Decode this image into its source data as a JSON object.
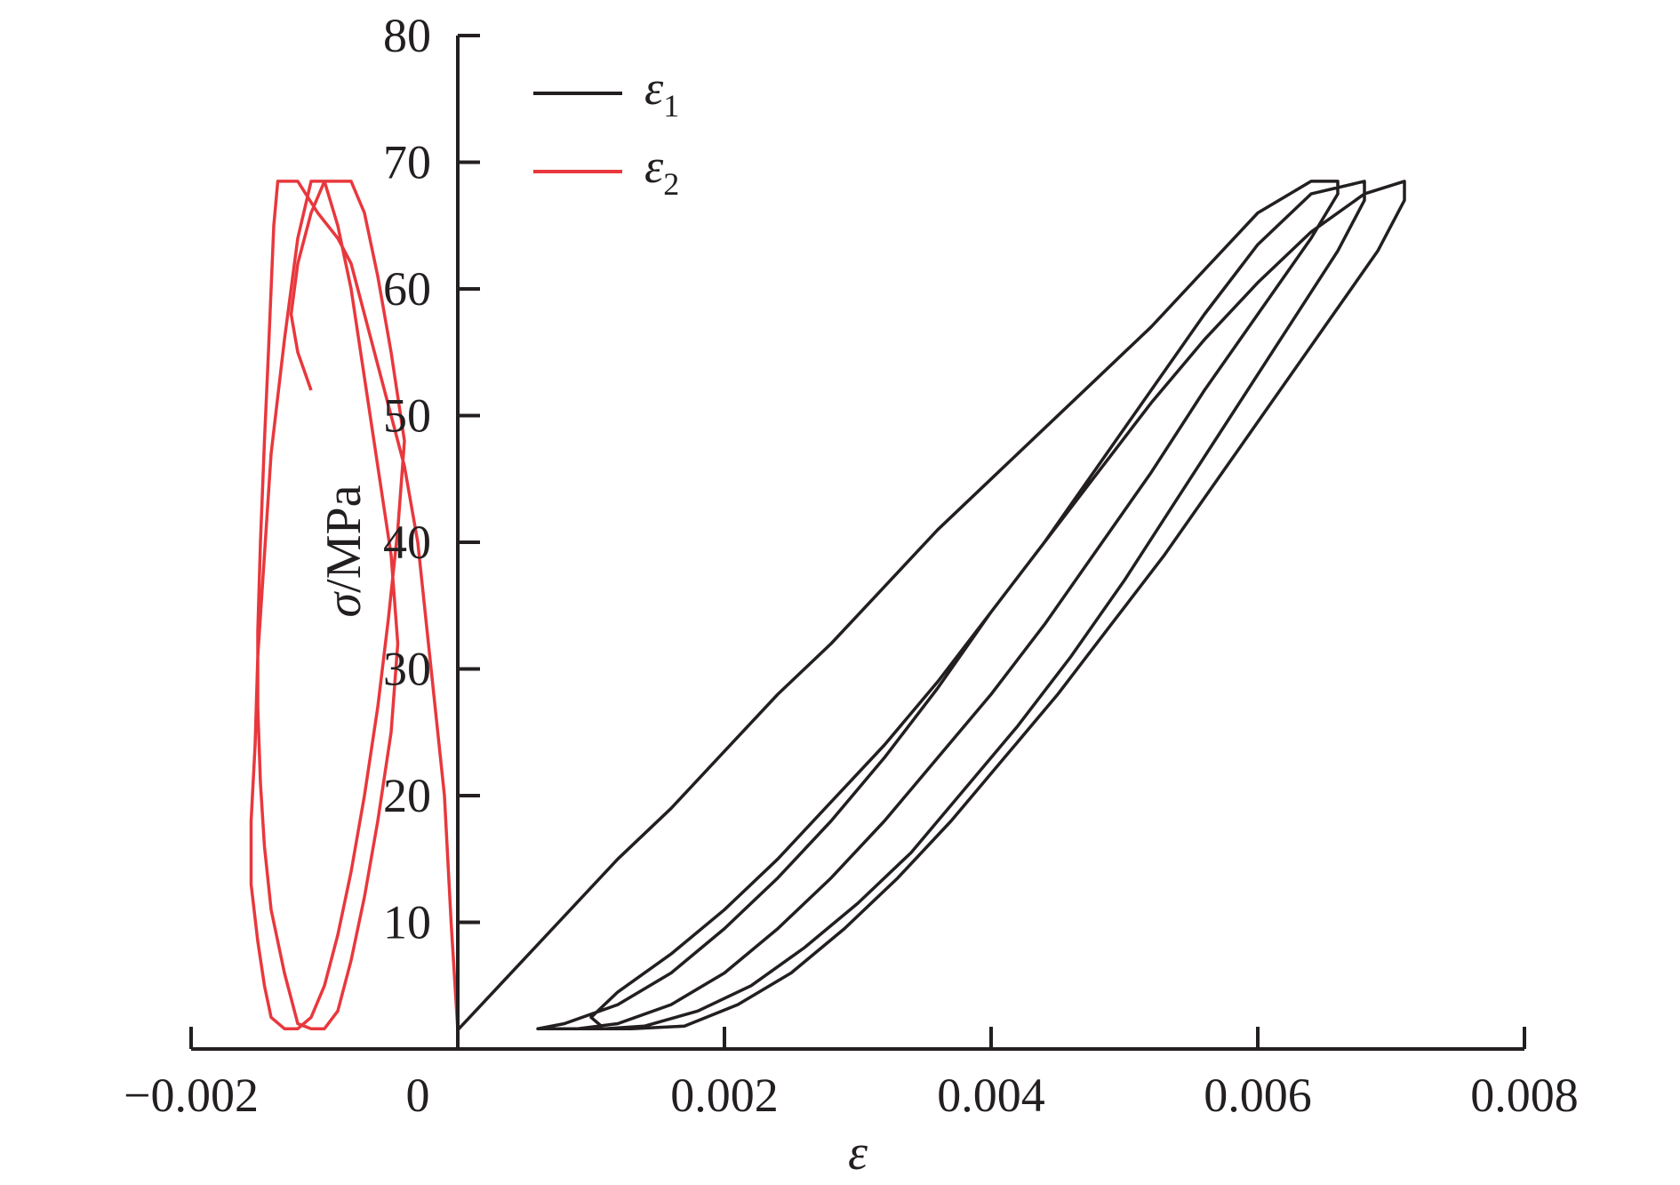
{
  "chart_data": {
    "type": "line",
    "title": "",
    "xlabel": "ε",
    "ylabel": "σ/MPa",
    "xlim": [
      -0.002,
      0.008
    ],
    "ylim": [
      0,
      80
    ],
    "x_ticks": [
      -0.002,
      0,
      0.002,
      0.004,
      0.006,
      0.008
    ],
    "x_tick_labels": [
      "−0.002",
      "0",
      "0.002",
      "0.004",
      "0.006",
      "0.008"
    ],
    "y_ticks": [
      10,
      20,
      30,
      40,
      50,
      60,
      70,
      80
    ],
    "y_tick_labels": [
      "10",
      "20",
      "30",
      "40",
      "50",
      "60",
      "70",
      "80"
    ],
    "grid": false,
    "legend_position": "top-left",
    "series": [
      {
        "name": "ε",
        "name_subscript": "1",
        "color": "#231f20",
        "x": [
          0.0,
          0.0004,
          0.0008,
          0.0012,
          0.0016,
          0.002,
          0.0024,
          0.0028,
          0.0032,
          0.0036,
          0.004,
          0.0044,
          0.0048,
          0.0052,
          0.0056,
          0.006,
          0.0064,
          0.0066,
          0.0066,
          0.0064,
          0.006,
          0.0056,
          0.0052,
          0.0048,
          0.0044,
          0.004,
          0.0036,
          0.0032,
          0.0028,
          0.0024,
          0.002,
          0.0016,
          0.0012,
          0.0009,
          0.0006,
          0.0008,
          0.0012,
          0.0016,
          0.002,
          0.0024,
          0.0028,
          0.0032,
          0.0036,
          0.004,
          0.0044,
          0.0048,
          0.0052,
          0.0056,
          0.006,
          0.0064,
          0.0068,
          0.0068,
          0.0066,
          0.0062,
          0.0058,
          0.0054,
          0.005,
          0.0046,
          0.0042,
          0.0038,
          0.0034,
          0.003,
          0.0026,
          0.0022,
          0.0018,
          0.0014,
          0.0011,
          0.001,
          0.0012,
          0.0016,
          0.002,
          0.0024,
          0.0028,
          0.0032,
          0.0036,
          0.004,
          0.0044,
          0.0048,
          0.0052,
          0.0056,
          0.006,
          0.0064,
          0.0068,
          0.0071,
          0.0071,
          0.0069,
          0.0065,
          0.0061,
          0.0057,
          0.0053,
          0.0049,
          0.0045,
          0.0041,
          0.0037,
          0.0033,
          0.0029,
          0.0025,
          0.0021,
          0.0017,
          0.0013,
          0.0007
        ],
        "y": [
          1.5,
          6,
          10.5,
          15,
          19,
          23.5,
          28,
          32,
          36.5,
          41,
          45,
          49,
          53,
          57,
          61.5,
          66,
          68.5,
          68.5,
          67.5,
          64,
          58,
          52,
          45.5,
          39.5,
          33.5,
          28,
          23,
          18,
          13.5,
          9.5,
          6,
          3.5,
          2,
          1.6,
          1.6,
          2,
          3.5,
          6,
          9.5,
          13.5,
          18,
          23,
          28.5,
          34.5,
          40,
          46,
          52,
          58,
          63.5,
          67.5,
          68.5,
          67,
          63,
          56.5,
          50,
          43.5,
          37,
          31,
          25.5,
          20.5,
          15.5,
          11.5,
          8,
          5,
          3,
          1.8,
          1.6,
          2.5,
          4.5,
          7.5,
          11,
          15,
          19.5,
          24,
          29,
          34.5,
          40,
          45.5,
          51,
          56,
          60.5,
          64.5,
          67.5,
          68.5,
          67,
          63,
          57,
          51,
          45,
          39,
          33.5,
          28,
          23,
          18,
          13.5,
          9.5,
          6,
          3.5,
          1.8,
          1.6,
          1.6
        ]
      },
      {
        "name": "ε",
        "name_subscript": "2",
        "color": "#e8383d",
        "x": [
          0.0,
          -5e-05,
          -0.0001,
          -0.0002,
          -0.0003,
          -0.0004,
          -0.0005,
          -0.0006,
          -0.0007,
          -0.0008,
          -0.0009,
          -0.00105,
          -0.0012,
          -0.0013,
          -0.00135,
          -0.00138,
          -0.0014,
          -0.00142,
          -0.00145,
          -0.00148,
          -0.0015,
          -0.0015,
          -0.00148,
          -0.00145,
          -0.0014,
          -0.0013,
          -0.0012,
          -0.0011,
          -0.001,
          -0.0009,
          -0.0008,
          -0.0007,
          -0.0006,
          -0.0005,
          -0.00045,
          -0.0005,
          -0.0006,
          -0.0007,
          -0.0008,
          -0.0009,
          -0.001,
          -0.0011,
          -0.0012,
          -0.0013,
          -0.0014,
          -0.00145,
          -0.0015,
          -0.00152,
          -0.00155,
          -0.00155,
          -0.0015,
          -0.00145,
          -0.0014,
          -0.0013,
          -0.0012,
          -0.0011,
          -0.001,
          -0.0009,
          -0.0008,
          -0.0007,
          -0.0006,
          -0.00052,
          -0.00045,
          -0.0004,
          -0.0005,
          -0.0006,
          -0.0007,
          -0.0008,
          -0.0009,
          -0.001,
          -0.0011,
          -0.0012,
          -0.00125,
          -0.0012,
          -0.0011
        ],
        "y": [
          1.5,
          10,
          20,
          30,
          40,
          46,
          50,
          54,
          58,
          62,
          64,
          66,
          68.5,
          68.5,
          68.5,
          65,
          60,
          55,
          48,
          40,
          33,
          27,
          21,
          16,
          11,
          6,
          2,
          1.6,
          1.6,
          3,
          7,
          12,
          18,
          25,
          32,
          39,
          46,
          53,
          60,
          65,
          68.5,
          68.5,
          64,
          56,
          47,
          39,
          31,
          24,
          18,
          13,
          8.5,
          5,
          2.5,
          1.6,
          1.6,
          2.5,
          5,
          9,
          14,
          20,
          27,
          34,
          41,
          48,
          55,
          61,
          66,
          68.5,
          68.5,
          68.5,
          66,
          62,
          58,
          55,
          52
        ]
      }
    ]
  }
}
